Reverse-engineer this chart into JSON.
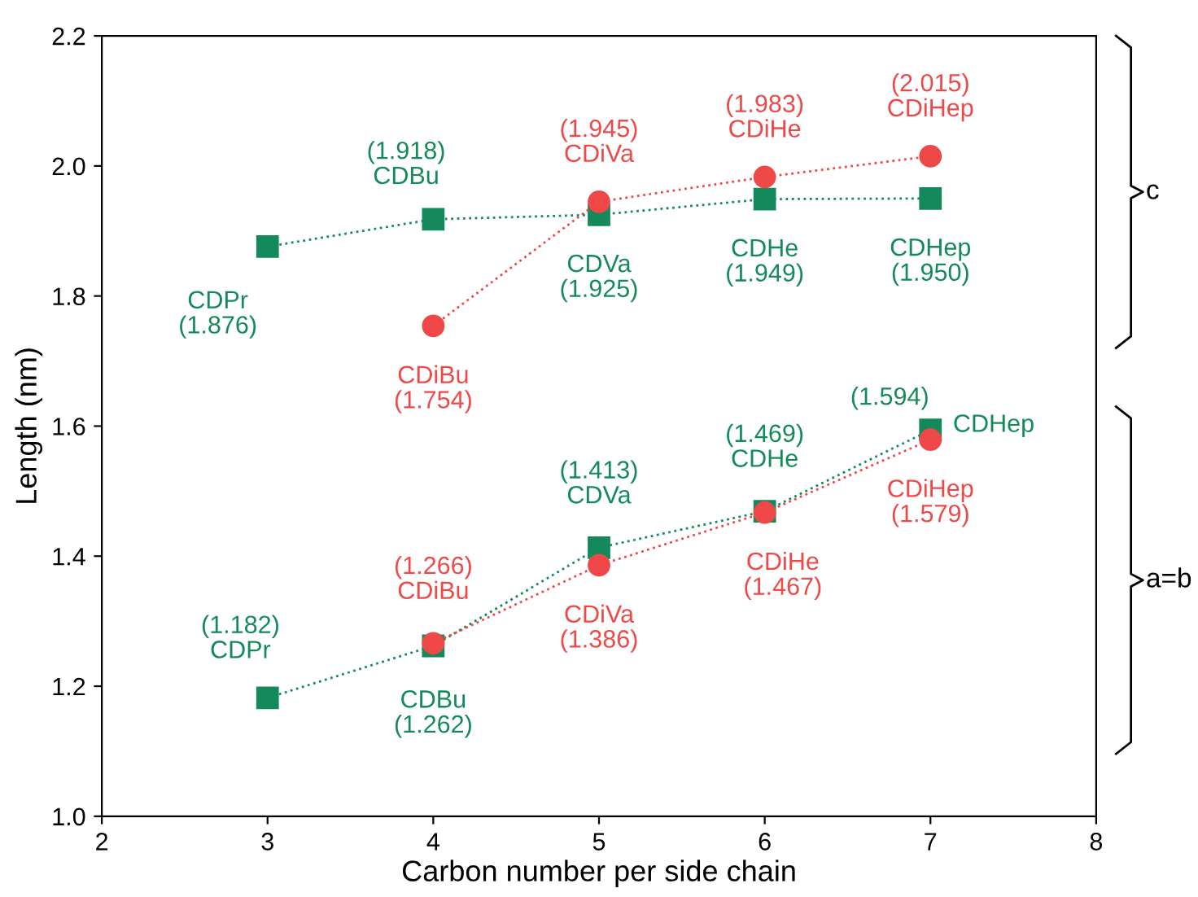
{
  "chart_data": {
    "type": "line",
    "xlabel": "Carbon number per side chain",
    "ylabel": "Length (nm)",
    "xlim": [
      2,
      8
    ],
    "xticks": [
      2,
      3,
      4,
      5,
      6,
      7,
      8
    ],
    "ylim": [
      1.0,
      2.2
    ],
    "yticks": [
      {
        "value": 1.0,
        "label": "1.0"
      },
      {
        "value": 1.2,
        "label": "1.2"
      },
      {
        "value": 1.4,
        "label": "1.4"
      },
      {
        "value": 1.6,
        "label": "1.6"
      },
      {
        "value": 1.8,
        "label": "1.8"
      },
      {
        "value": 2.0,
        "label": "2.0"
      },
      {
        "value": 2.2,
        "label": "2.2"
      }
    ],
    "grid": false,
    "legend": false,
    "line_style": "dotted",
    "series": [
      {
        "color": "#148a5c",
        "marker": "square",
        "x": [
          3,
          4,
          5,
          6,
          7
        ],
        "values": [
          1.876,
          1.918,
          1.925,
          1.949,
          1.95
        ]
      },
      {
        "color": "#ef4848",
        "marker": "circle",
        "x": [
          4,
          5,
          6,
          7
        ],
        "values": [
          1.754,
          1.945,
          1.983,
          2.015
        ]
      },
      {
        "color": "#148a5c",
        "marker": "square",
        "x": [
          3,
          4,
          5,
          6,
          7
        ],
        "values": [
          1.182,
          1.262,
          1.413,
          1.469,
          1.594
        ]
      },
      {
        "color": "#ef4848",
        "marker": "circle",
        "x": [
          4,
          5,
          6,
          7
        ],
        "values": [
          1.266,
          1.386,
          1.467,
          1.579
        ]
      }
    ],
    "annotations": [
      {
        "text": "CDPr\n(1.876)",
        "x": 3,
        "y": 1.876
      },
      {
        "text": "(1.918)\nCDBu",
        "x": 4,
        "y": 1.918
      },
      {
        "text": "CDVa\n(1.925)",
        "x": 5,
        "y": 1.925
      },
      {
        "text": "CDHe\n(1.949)",
        "x": 6,
        "y": 1.949
      },
      {
        "text": "CDHep\n(1.950)",
        "x": 7,
        "y": 1.95
      },
      {
        "text": "CDiBu\n(1.754)",
        "x": 4,
        "y": 1.754
      },
      {
        "text": "(1.945)\nCDiVa",
        "x": 5,
        "y": 1.945
      },
      {
        "text": "(1.983)\nCDiHe",
        "x": 6,
        "y": 1.983
      },
      {
        "text": "(2.015)\nCDiHep",
        "x": 7,
        "y": 2.015
      },
      {
        "text": "(1.182)\nCDPr",
        "x": 3,
        "y": 1.182
      },
      {
        "text": "CDBu\n(1.262)",
        "x": 4,
        "y": 1.262
      },
      {
        "text": "(1.413)\nCDVa",
        "x": 5,
        "y": 1.413
      },
      {
        "text": "(1.469)\nCDHe",
        "x": 6,
        "y": 1.469
      },
      {
        "text": "(1.594)",
        "x": 7,
        "y": 1.594
      },
      {
        "text": "CDHep",
        "x": 7,
        "y": 1.594
      },
      {
        "text": "(1.266)\nCDiBu",
        "x": 4,
        "y": 1.266
      },
      {
        "text": "CDiVa\n(1.386)",
        "x": 5,
        "y": 1.386
      },
      {
        "text": "CDiHe\n(1.467)",
        "x": 6,
        "y": 1.467
      },
      {
        "text": "CDiHep\n(1.579)",
        "x": 7,
        "y": 1.579
      },
      "c",
      "a=b"
    ]
  }
}
